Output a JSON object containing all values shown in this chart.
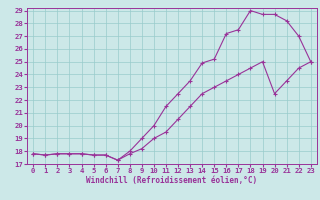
{
  "xlabel": "Windchill (Refroidissement éolien,°C)",
  "line1_x": [
    0,
    1,
    2,
    3,
    4,
    5,
    6,
    7,
    8,
    9,
    10,
    11,
    12,
    13,
    14,
    15,
    16,
    17,
    18,
    19,
    20,
    21,
    22,
    23
  ],
  "line1_y": [
    17.8,
    17.7,
    17.8,
    17.8,
    17.8,
    17.7,
    17.7,
    17.3,
    18.0,
    19.0,
    20.0,
    21.5,
    22.5,
    23.5,
    24.9,
    25.2,
    27.2,
    27.5,
    29.0,
    28.7,
    28.7,
    28.2,
    27.0,
    25.0
  ],
  "line2_x": [
    0,
    1,
    2,
    3,
    4,
    5,
    6,
    7,
    8,
    9,
    10,
    11,
    12,
    13,
    14,
    15,
    16,
    17,
    18,
    19,
    20,
    21,
    22,
    23
  ],
  "line2_y": [
    17.8,
    17.7,
    17.8,
    17.8,
    17.8,
    17.7,
    17.7,
    17.3,
    17.8,
    18.2,
    19.0,
    19.5,
    20.5,
    21.5,
    22.5,
    23.0,
    23.5,
    24.0,
    24.5,
    25.0,
    22.5,
    23.5,
    24.5,
    25.0
  ],
  "line_color": "#993399",
  "bg_color": "#cce8e8",
  "grid_color": "#99cccc",
  "xlim": [
    -0.5,
    23.5
  ],
  "ylim": [
    17,
    29
  ],
  "xticks": [
    0,
    1,
    2,
    3,
    4,
    5,
    6,
    7,
    8,
    9,
    10,
    11,
    12,
    13,
    14,
    15,
    16,
    17,
    18,
    19,
    20,
    21,
    22,
    23
  ],
  "yticks": [
    17,
    18,
    19,
    20,
    21,
    22,
    23,
    24,
    25,
    26,
    27,
    28,
    29
  ],
  "tick_fontsize": 5.2,
  "label_fontsize": 5.5
}
